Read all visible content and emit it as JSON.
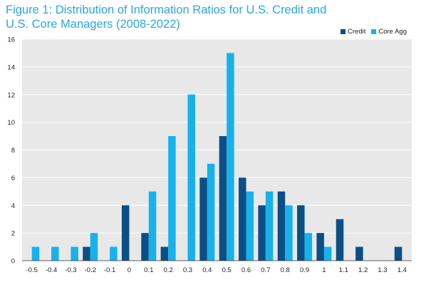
{
  "chart_data": {
    "type": "bar",
    "title": "Figure 1: Distribution of Information  Ratios for U.S. Credit and U.S. Core Managers (2008-2022)",
    "xlabel": "",
    "ylabel": "",
    "categories": [
      "-0.5",
      "-0.4",
      "-0.3",
      "-0.2",
      "-0.1",
      "0",
      "0.1",
      "0.2",
      "0.3",
      "0.4",
      "0.5",
      "0.6",
      "0.7",
      "0.8",
      "0.9",
      "1",
      "1.1",
      "1.2",
      "1.3",
      "1.4"
    ],
    "series": [
      {
        "name": "Credit",
        "color": "#0b4f86",
        "values": [
          0,
          0,
          0,
          1,
          0,
          4,
          2,
          1,
          0,
          6,
          9,
          6,
          4,
          5,
          4,
          2,
          3,
          1,
          0,
          1
        ]
      },
      {
        "name": "Core Agg",
        "color": "#17b2ec",
        "values": [
          1,
          1,
          1,
          2,
          1,
          0,
          5,
          9,
          12,
          7,
          15,
          5,
          5,
          4,
          2,
          1,
          0,
          0,
          0,
          0
        ]
      }
    ],
    "ylim": [
      0,
      16
    ],
    "yticks": [
      0,
      2,
      4,
      6,
      8,
      10,
      12,
      14,
      16
    ],
    "grid": true,
    "legend_position": "top-right",
    "plot_background": "#e8e8e8"
  }
}
